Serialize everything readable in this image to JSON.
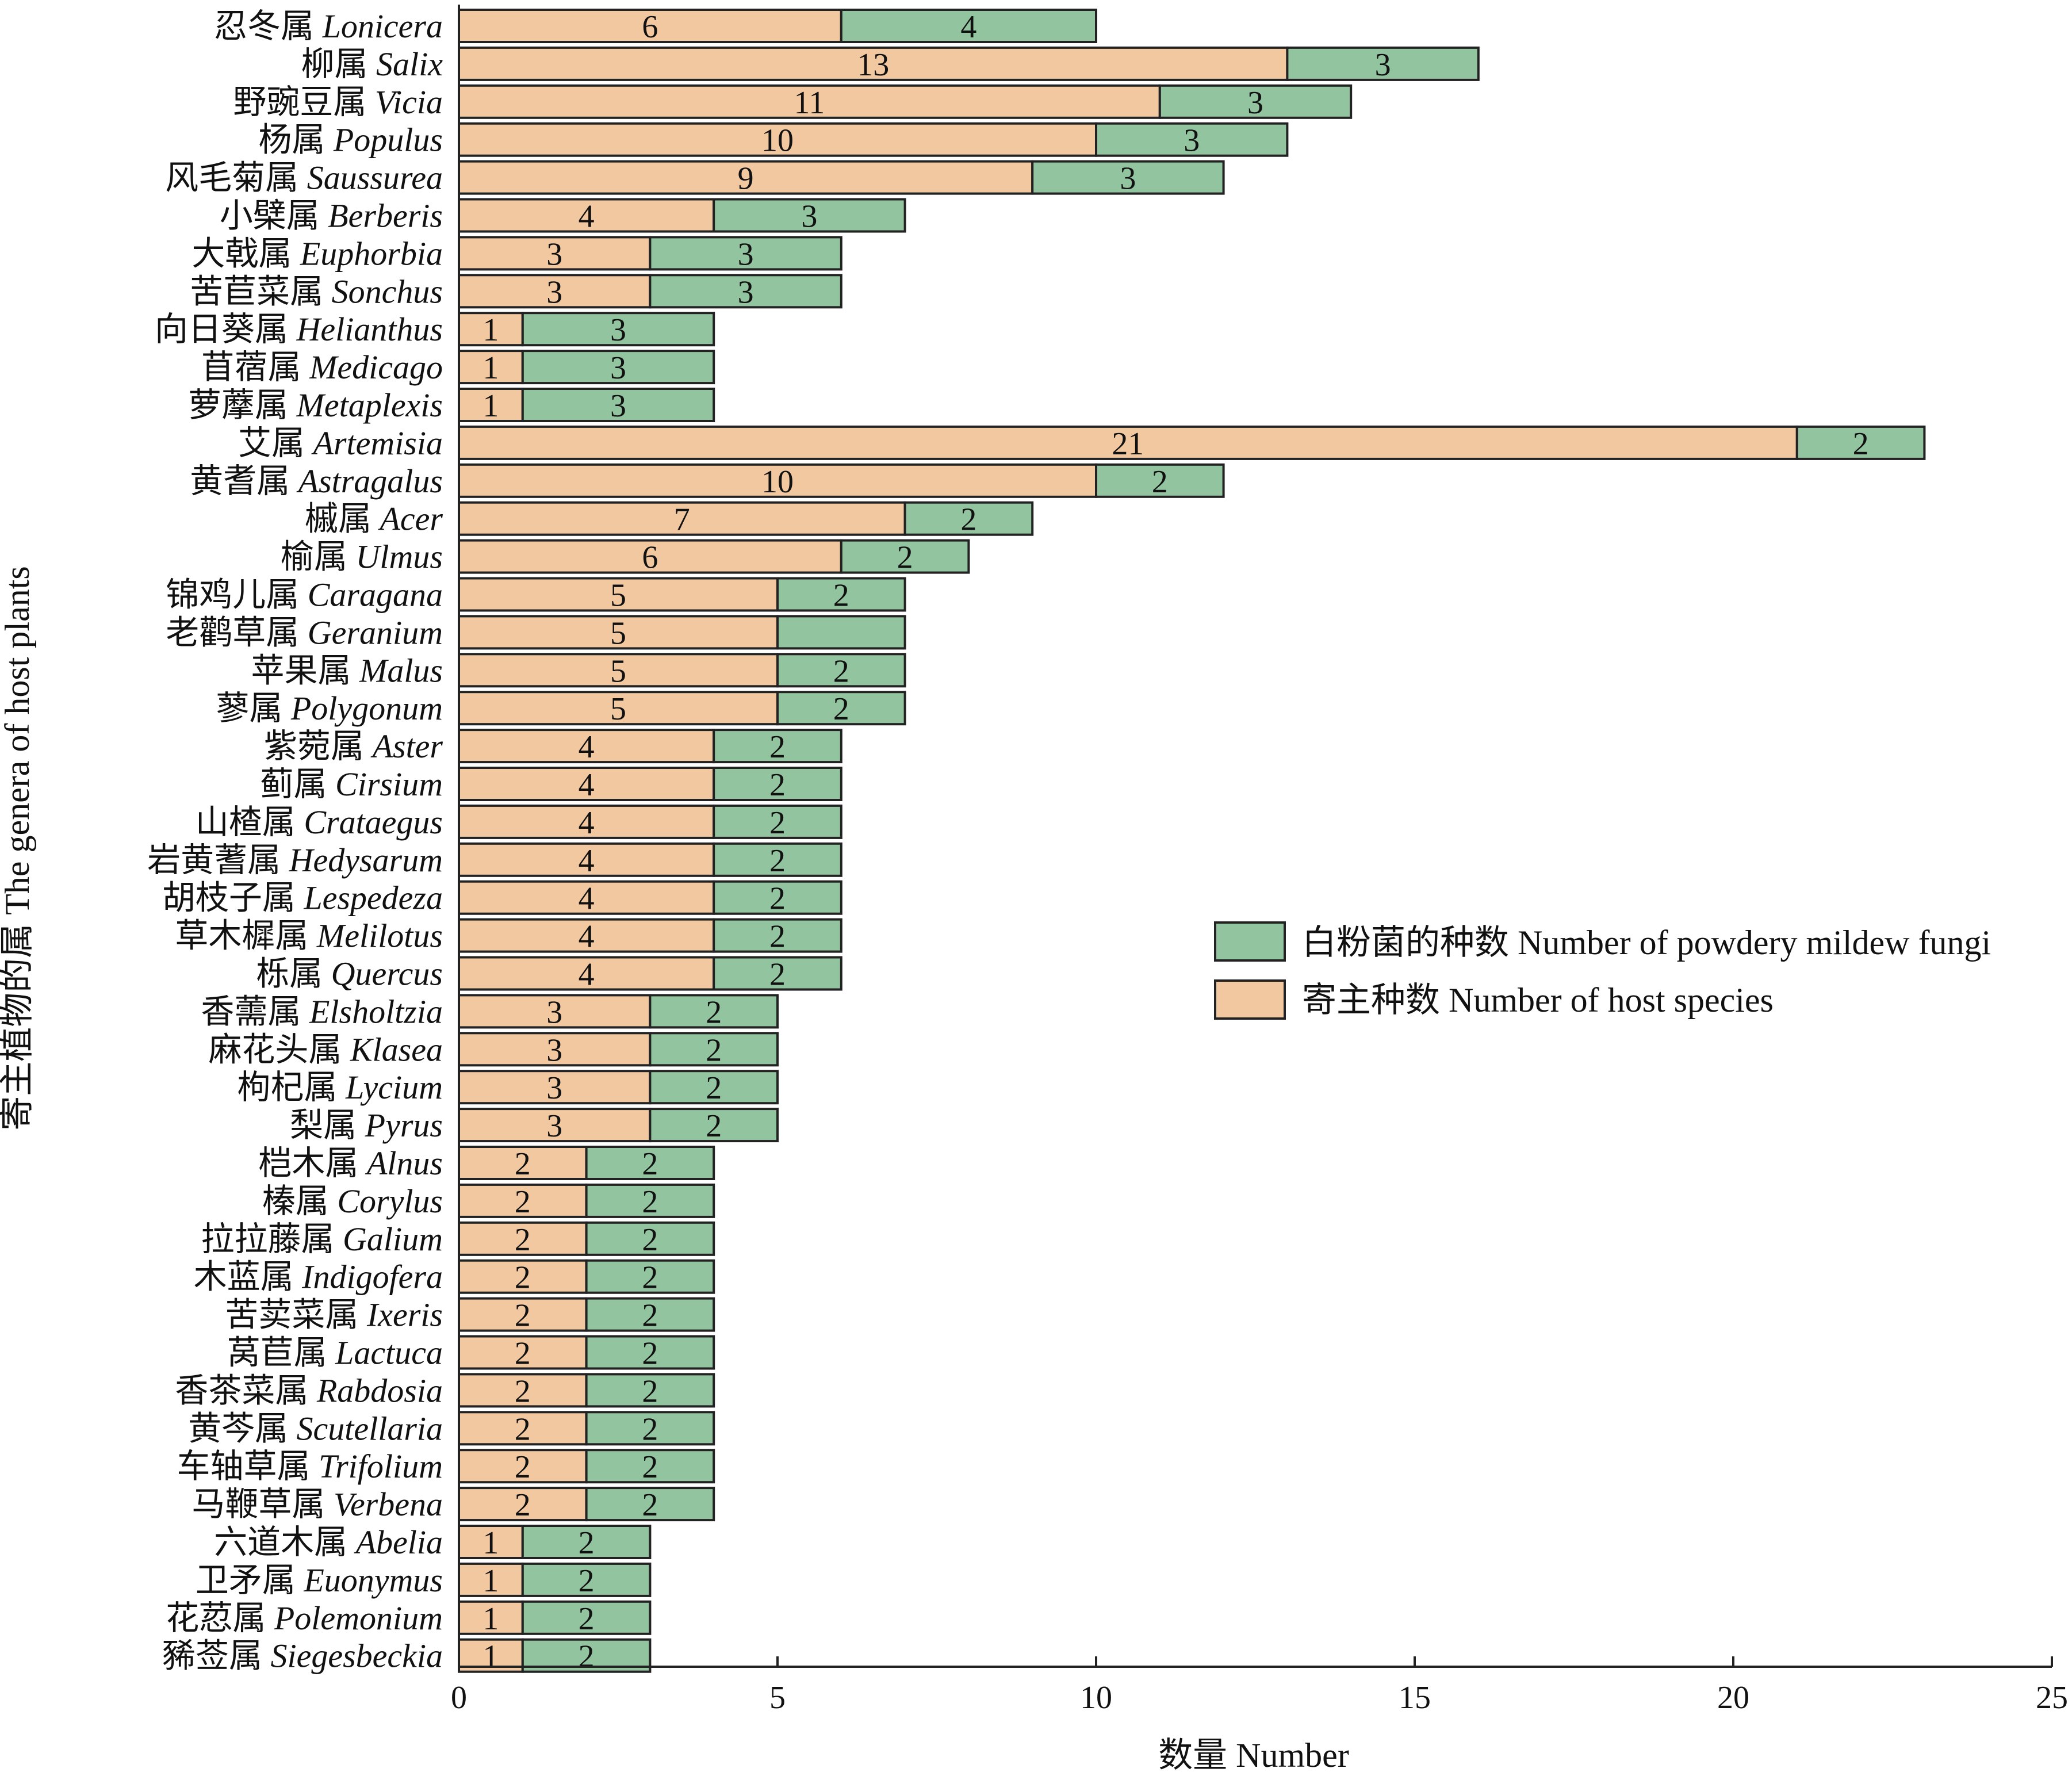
{
  "chart_data": {
    "type": "bar",
    "orientation": "horizontal",
    "stacked": true,
    "xlabel": "数量 Number",
    "ylabel": "寄主植物的属 The genera of host plants",
    "xlim": [
      0,
      25
    ],
    "xticks": [
      0,
      5,
      10,
      15,
      20,
      25
    ],
    "legend_position": "right-middle",
    "categories": [
      {
        "cn": "忍冬属",
        "latin": "Lonicera"
      },
      {
        "cn": "柳属",
        "latin": "Salix"
      },
      {
        "cn": "野豌豆属",
        "latin": "Vicia"
      },
      {
        "cn": "杨属",
        "latin": "Populus"
      },
      {
        "cn": "风毛菊属",
        "latin": "Saussurea"
      },
      {
        "cn": "小檗属",
        "latin": "Berberis"
      },
      {
        "cn": "大戟属",
        "latin": "Euphorbia"
      },
      {
        "cn": "苦苣菜属",
        "latin": "Sonchus"
      },
      {
        "cn": "向日葵属",
        "latin": "Helianthus"
      },
      {
        "cn": "苜蓿属",
        "latin": "Medicago"
      },
      {
        "cn": "萝藦属",
        "latin": "Metaplexis"
      },
      {
        "cn": "艾属",
        "latin": "Artemisia"
      },
      {
        "cn": "黄耆属",
        "latin": "Astragalus"
      },
      {
        "cn": "槭属",
        "latin": "Acer"
      },
      {
        "cn": "榆属",
        "latin": "Ulmus"
      },
      {
        "cn": "锦鸡儿属",
        "latin": "Caragana"
      },
      {
        "cn": "老鹳草属",
        "latin": "Geranium"
      },
      {
        "cn": "苹果属",
        "latin": "Malus"
      },
      {
        "cn": "蓼属",
        "latin": "Polygonum"
      },
      {
        "cn": "紫菀属",
        "latin": "Aster"
      },
      {
        "cn": "蓟属",
        "latin": "Cirsium"
      },
      {
        "cn": "山楂属",
        "latin": "Crataegus"
      },
      {
        "cn": "岩黄蓍属",
        "latin": "Hedysarum"
      },
      {
        "cn": "胡枝子属",
        "latin": "Lespedeza"
      },
      {
        "cn": "草木樨属",
        "latin": "Melilotus"
      },
      {
        "cn": "栎属",
        "latin": "Quercus"
      },
      {
        "cn": "香薷属",
        "latin": "Elsholtzia"
      },
      {
        "cn": "麻花头属",
        "latin": "Klasea"
      },
      {
        "cn": "枸杞属",
        "latin": "Lycium"
      },
      {
        "cn": "梨属",
        "latin": "Pyrus"
      },
      {
        "cn": "桤木属",
        "latin": "Alnus"
      },
      {
        "cn": "榛属",
        "latin": "Corylus"
      },
      {
        "cn": "拉拉藤属",
        "latin": "Galium"
      },
      {
        "cn": "木蓝属",
        "latin": "Indigofera"
      },
      {
        "cn": "苦荬菜属",
        "latin": "Ixeris"
      },
      {
        "cn": "莴苣属",
        "latin": "Lactuca"
      },
      {
        "cn": "香茶菜属",
        "latin": "Rabdosia"
      },
      {
        "cn": "黄芩属",
        "latin": "Scutellaria"
      },
      {
        "cn": "车轴草属",
        "latin": "Trifolium"
      },
      {
        "cn": "马鞭草属",
        "latin": "Verbena"
      },
      {
        "cn": "六道木属",
        "latin": "Abelia"
      },
      {
        "cn": "卫矛属",
        "latin": "Euonymus"
      },
      {
        "cn": "花荵属",
        "latin": "Polemonium"
      },
      {
        "cn": "豨莶属",
        "latin": "Siegesbeckia"
      }
    ],
    "series": [
      {
        "name": "寄主种数 Number of host species",
        "color": "#f2c8a0",
        "values": [
          6,
          13,
          11,
          10,
          9,
          4,
          3,
          3,
          1,
          1,
          1,
          21,
          10,
          7,
          6,
          5,
          5,
          5,
          5,
          4,
          4,
          4,
          4,
          4,
          4,
          4,
          3,
          3,
          3,
          3,
          2,
          2,
          2,
          2,
          2,
          2,
          2,
          2,
          2,
          2,
          1,
          1,
          1,
          1
        ]
      },
      {
        "name": "白粉菌的种数 Number of powdery mildew fungi",
        "color": "#93c4a0",
        "values": [
          4,
          3,
          3,
          3,
          3,
          3,
          3,
          3,
          3,
          3,
          3,
          2,
          2,
          2,
          2,
          2,
          2,
          2,
          2,
          2,
          2,
          2,
          2,
          2,
          2,
          2,
          2,
          2,
          2,
          2,
          2,
          2,
          2,
          2,
          2,
          2,
          2,
          2,
          2,
          2,
          2,
          2,
          2,
          2
        ],
        "labels_shown": [
          true,
          true,
          true,
          true,
          true,
          true,
          true,
          true,
          true,
          true,
          true,
          true,
          true,
          true,
          true,
          true,
          false,
          true,
          true,
          true,
          true,
          true,
          true,
          true,
          true,
          true,
          true,
          true,
          true,
          true,
          true,
          true,
          true,
          true,
          true,
          true,
          true,
          true,
          true,
          true,
          true,
          true,
          true,
          true
        ]
      }
    ],
    "legend": [
      {
        "label": "白粉菌的种数 Number of powdery mildew fungi",
        "color": "#93c4a0"
      },
      {
        "label": "寄主种数 Number of host species",
        "color": "#f2c8a0"
      }
    ]
  }
}
